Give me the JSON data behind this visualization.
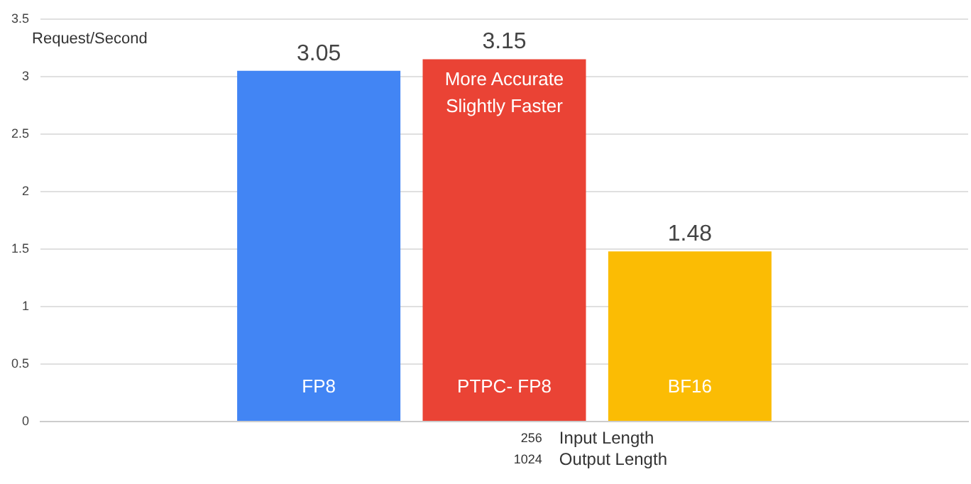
{
  "chart_data": {
    "type": "bar",
    "ylabel": "Request/Second",
    "categories": [
      null,
      "FP8",
      "PTPC- FP8",
      "BF16",
      null
    ],
    "values": [
      null,
      3.05,
      3.15,
      1.48,
      null
    ],
    "colors": [
      "#4285f4",
      "#4285f4",
      "#ea4335",
      "#fbbc04",
      "#fbbc04"
    ],
    "data_labels": true,
    "ylim": [
      0,
      3.5
    ],
    "yticks": [
      0,
      0.5,
      1,
      1.5,
      2,
      2.5,
      3,
      3.5
    ],
    "grid": "y",
    "legend": false,
    "annotations": [
      {
        "text": "More Accurate",
        "x": "PTPC- FP8",
        "y": 3.15
      },
      {
        "text": "Slightly Faster",
        "x": "PTPC- FP8",
        "y": 3.15
      },
      "256",
      "Input Length",
      "1024",
      "Output Length"
    ]
  }
}
